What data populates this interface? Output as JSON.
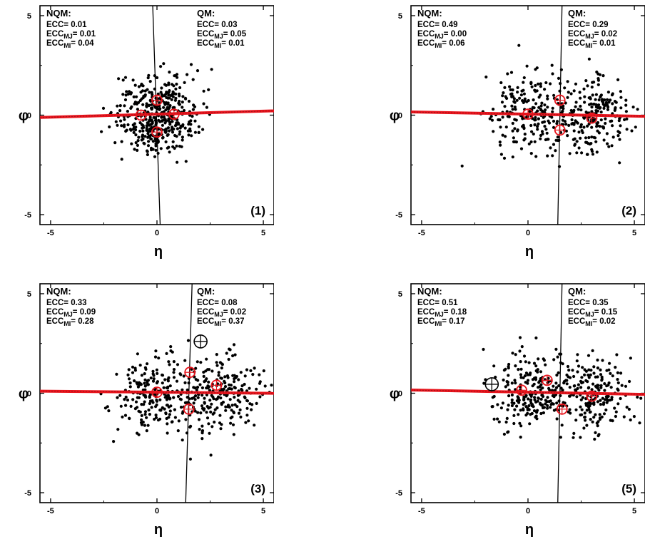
{
  "chart_data": [
    {
      "type": "scatter",
      "panel_label": "(1)",
      "xlabel": "η",
      "ylabel": "φ",
      "xlim": [
        -5.5,
        5.5
      ],
      "ylim": [
        -5.5,
        5.5
      ],
      "xticks": [
        "-5",
        "0",
        "5"
      ],
      "yticks": [
        "5",
        "0",
        "-5"
      ],
      "nqm": {
        "title": "NQM:",
        "ecc": "0.01",
        "ecc_mj": "0.01",
        "ecc_mi": "0.04"
      },
      "qm": {
        "title": "QM:",
        "ecc": "0.03",
        "ecc_mj": "0.05",
        "ecc_mi": "0.01"
      },
      "cluster_centers": [
        [
          0,
          0
        ]
      ],
      "red_line": {
        "slope": 0.03,
        "intercept": 0.05
      },
      "black_line": {
        "x_top": -0.2,
        "x_bottom": 0.15
      },
      "red_circles": [
        [
          0,
          0.75
        ],
        [
          -0.75,
          0
        ],
        [
          0.8,
          0.05
        ],
        [
          0,
          -0.85
        ]
      ],
      "black_circle": null,
      "colors": {
        "points": "#000000",
        "red": "#e8141c"
      }
    },
    {
      "type": "scatter",
      "panel_label": "(2)",
      "xlabel": "η",
      "ylabel": "φ",
      "xlim": [
        -5.5,
        5.5
      ],
      "ylim": [
        -5.5,
        5.5
      ],
      "xticks": [
        "-5",
        "0",
        "5"
      ],
      "yticks": [
        "5",
        "0",
        "-5"
      ],
      "nqm": {
        "title": "NQM:",
        "ecc": "0.49",
        "ecc_mj": "0.00",
        "ecc_mi": "0.06"
      },
      "qm": {
        "title": "QM:",
        "ecc": "0.29",
        "ecc_mj": "0.02",
        "ecc_mi": "0.01"
      },
      "cluster_centers": [
        [
          0,
          0
        ],
        [
          3,
          0
        ]
      ],
      "red_line": {
        "slope": -0.02,
        "intercept": 0.05
      },
      "black_line": {
        "x_top": 1.6,
        "x_bottom": 1.4
      },
      "red_circles": [
        [
          0,
          0.05
        ],
        [
          1.5,
          0.75
        ],
        [
          1.5,
          -0.75
        ],
        [
          3,
          -0.15
        ]
      ],
      "black_circle": null,
      "colors": {
        "points": "#000000",
        "red": "#e8141c"
      }
    },
    {
      "type": "scatter",
      "panel_label": "(3)",
      "xlabel": "η",
      "ylabel": "φ",
      "xlim": [
        -5.5,
        5.5
      ],
      "ylim": [
        -5.5,
        5.5
      ],
      "xticks": [
        "-5",
        "0",
        "5"
      ],
      "yticks": [
        "5",
        "0",
        "-5"
      ],
      "nqm": {
        "title": "NQM:",
        "ecc": "0.33",
        "ecc_mj": "0.09",
        "ecc_mi": "0.28"
      },
      "qm": {
        "title": "QM:",
        "ecc": "0.08",
        "ecc_mj": "0.02",
        "ecc_mi": "0.37"
      },
      "cluster_centers": [
        [
          0,
          0
        ],
        [
          3,
          0
        ]
      ],
      "red_line": {
        "slope": -0.01,
        "intercept": 0.05
      },
      "black_line": {
        "x_top": 1.65,
        "x_bottom": 1.35
      },
      "red_circles": [
        [
          0,
          0.05
        ],
        [
          1.55,
          1.05
        ],
        [
          1.5,
          -0.8
        ],
        [
          2.8,
          0.4
        ]
      ],
      "black_circle": [
        2.05,
        2.6
      ],
      "colors": {
        "points": "#000000",
        "red": "#e8141c"
      }
    },
    {
      "type": "scatter",
      "panel_label": "(5)",
      "xlabel": "η",
      "ylabel": "φ",
      "xlim": [
        -5.5,
        5.5
      ],
      "ylim": [
        -5.5,
        5.5
      ],
      "xticks": [
        "-5",
        "0",
        "5"
      ],
      "yticks": [
        "5",
        "0",
        "-5"
      ],
      "nqm": {
        "title": "NQM:",
        "ecc": "0.51",
        "ecc_mj": "0.18",
        "ecc_mi": "0.17"
      },
      "qm": {
        "title": "QM:",
        "ecc": "0.35",
        "ecc_mj": "0.15",
        "ecc_mi": "0.02"
      },
      "cluster_centers": [
        [
          0,
          0
        ],
        [
          3,
          0
        ]
      ],
      "red_line": {
        "slope": -0.02,
        "intercept": 0.05
      },
      "black_line": {
        "x_top": 1.6,
        "x_bottom": 1.4
      },
      "red_circles": [
        [
          -0.3,
          0.15
        ],
        [
          0.9,
          0.65
        ],
        [
          1.6,
          -0.8
        ],
        [
          3,
          -0.15
        ]
      ],
      "black_circle": [
        -1.7,
        0.45
      ],
      "colors": {
        "points": "#000000",
        "red": "#e8141c"
      }
    }
  ]
}
